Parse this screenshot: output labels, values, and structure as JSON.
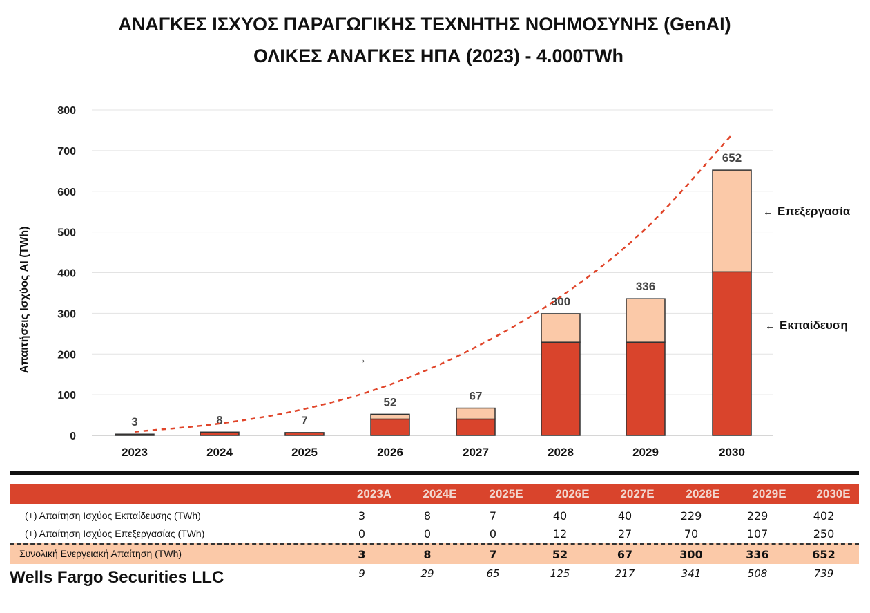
{
  "titles": {
    "line1": "ΑΝΑΓΚΕΣ ΙΣΧΥΟΣ ΠΑΡΑΓΩΓΙΚΗΣ ΤΕΧΝΗΤΗΣ ΝΟΗΜΟΣΥΝΗΣ (GenAI)",
    "line2": "ΟΛΙΚΕΣ ΑΝΑΓΚΕΣ ΗΠΑ (2023) - 4.000TWh"
  },
  "colors": {
    "training": "#d9442c",
    "processing": "#fbc9a8",
    "trend": "#e0452a"
  },
  "chart_data": {
    "type": "bar",
    "stacked": true,
    "ylabel": "Απαιτήσεις Ισχύος AI (TWh)",
    "ylim": [
      0,
      800
    ],
    "yticks": [
      0,
      100,
      200,
      300,
      400,
      500,
      600,
      700,
      800
    ],
    "grid": true,
    "categories": [
      "2023",
      "2024",
      "2025",
      "2026",
      "2027",
      "2028",
      "2029",
      "2030"
    ],
    "series": [
      {
        "name": "Εκπαίδευση",
        "values": [
          3,
          8,
          7,
          40,
          40,
          229,
          229,
          402
        ]
      },
      {
        "name": "Επεξεργασία",
        "values": [
          0,
          0,
          0,
          12,
          27,
          70,
          107,
          250
        ]
      }
    ],
    "totals": [
      "3",
      "8",
      "7",
      "52",
      "67",
      "300",
      "336",
      "652"
    ],
    "trend": {
      "name": "dashed trend",
      "values": [
        9,
        29,
        65,
        125,
        217,
        341,
        508,
        739
      ]
    },
    "annotations": {
      "processing": "Επεξεργασία",
      "training": "Εκπαίδευση",
      "arrow_left": "←",
      "arrow_right": "→"
    }
  },
  "table": {
    "headers": [
      "2023A",
      "2024E",
      "2025E",
      "2026E",
      "2027E",
      "2028E",
      "2029E",
      "2030E"
    ],
    "rows": [
      {
        "label": "(+) Απαίτηση Ισχύος Εκπαίδευσης (TWh)",
        "values": [
          "3",
          "8",
          "7",
          "40",
          "40",
          "229",
          "229",
          "402"
        ]
      },
      {
        "label": "(+) Απαίτηση Ισχύος Επεξεργασίας (TWh)",
        "values": [
          "0",
          "0",
          "0",
          "12",
          "27",
          "70",
          "107",
          "250"
        ]
      },
      {
        "label": "Συνολική Ενεργειακή Απαίτηση (TWh)",
        "values": [
          "3",
          "8",
          "7",
          "52",
          "67",
          "300",
          "336",
          "652"
        ]
      },
      {
        "label": "",
        "values": [
          "9",
          "29",
          "65",
          "125",
          "217",
          "341",
          "508",
          "739"
        ]
      }
    ]
  },
  "source": "Wells Fargo Securities LLC"
}
